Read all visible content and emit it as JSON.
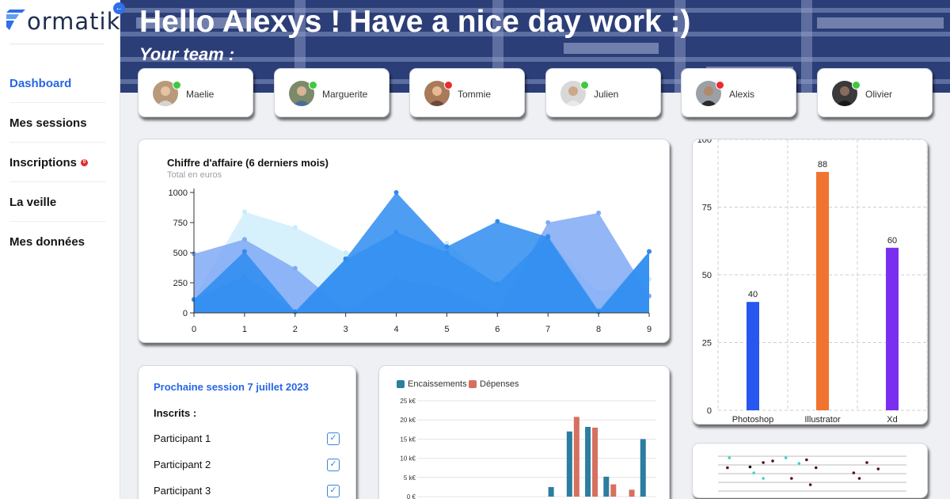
{
  "app": {
    "logo_text": "ormatik",
    "collapse_icon": "arrow-left-icon"
  },
  "nav": {
    "items": [
      {
        "label": "Dashboard",
        "active": true
      },
      {
        "label": "Mes sessions"
      },
      {
        "label": "Inscriptions",
        "badge": "0"
      },
      {
        "label": "La veille"
      },
      {
        "label": "Mes données"
      }
    ]
  },
  "hero": {
    "title": "Hello Alexys ! Have a nice day work :)",
    "subtitle": "Your team :"
  },
  "team": [
    {
      "name": "Maelie",
      "online": true
    },
    {
      "name": "Marguerite",
      "online": false
    },
    {
      "name": "Tommie",
      "online": false
    },
    {
      "name": "Julien",
      "online": true
    },
    {
      "name": "Alexis",
      "online": false
    },
    {
      "name": "Olivier",
      "online": true
    }
  ],
  "colors": {
    "accent": "#2766e6",
    "online": "#3ec93e",
    "offline": "#ea2c2c"
  },
  "revenue_chart": {
    "title": "Chiffre d'affaire (6 derniers mois)",
    "subtitle": "Total en euros"
  },
  "skills_chart": {},
  "session": {
    "title": "Prochaine session 7 juillet 2023",
    "inscrits_label": "Inscrits :",
    "participants": [
      "Participant 1",
      "Participant 2",
      "Participant 3"
    ]
  },
  "cash_chart": {},
  "chart_data": [
    {
      "type": "area",
      "title": "Chiffre d'affaire (6 derniers mois)",
      "subtitle": "Total en euros",
      "x": [
        0,
        1,
        2,
        3,
        4,
        5,
        6,
        7,
        8,
        9
      ],
      "ylim": [
        0,
        1000
      ],
      "yticks": [
        0,
        250,
        500,
        750,
        1000
      ],
      "grid": false,
      "series": [
        {
          "color": "#c9ecfb",
          "values": [
            120,
            840,
            710,
            500,
            550,
            580,
            210,
            610,
            170,
            280
          ]
        },
        {
          "color": "#7fa9f4",
          "values": [
            490,
            610,
            370,
            20,
            280,
            200,
            10,
            750,
            830,
            140
          ]
        },
        {
          "color": "#5aa7f2",
          "values": [
            110,
            310,
            10,
            440,
            670,
            500,
            240,
            640,
            20,
            510
          ]
        },
        {
          "color": "#2e8cf0",
          "values": [
            110,
            510,
            10,
            450,
            1000,
            550,
            760,
            630,
            10,
            510
          ]
        }
      ]
    },
    {
      "type": "bar",
      "categories": [
        "Photoshop",
        "Illustrator",
        "Xd"
      ],
      "values": [
        40,
        88,
        60
      ],
      "colors": [
        "#2756f0",
        "#f0742f",
        "#7a2ff0"
      ],
      "ylim": [
        0,
        100
      ],
      "yticks": [
        0,
        25,
        50,
        75,
        100
      ],
      "grid": true
    },
    {
      "type": "bar",
      "legend": "top-left",
      "ylim": [
        0,
        25000
      ],
      "yticks": [
        "0 €",
        "5 k€",
        "10 k€",
        "15 k€",
        "20 k€",
        "25 k€"
      ],
      "series": [
        {
          "name": "Encaissements",
          "color": "#2c7da0",
          "values": [
            0,
            0,
            0,
            0,
            0,
            0,
            0,
            2500,
            17000,
            18200,
            5200,
            0,
            15000
          ]
        },
        {
          "name": "Dépenses",
          "color": "#d6705f",
          "values": [
            0,
            0,
            0,
            0,
            0,
            0,
            0,
            0,
            20800,
            18000,
            3200,
            1800,
            0
          ]
        }
      ]
    },
    {
      "type": "scatter",
      "points": [
        {
          "x": 0.06,
          "y": 0.8,
          "color": "#37d6c4"
        },
        {
          "x": 0.05,
          "y": 0.55,
          "color": "#5a0d22"
        },
        {
          "x": 0.17,
          "y": 0.57,
          "color": "#111"
        },
        {
          "x": 0.19,
          "y": 0.42,
          "color": "#37d6c4"
        },
        {
          "x": 0.24,
          "y": 0.68,
          "color": "#5a0d22"
        },
        {
          "x": 0.29,
          "y": 0.72,
          "color": "#5a0d22"
        },
        {
          "x": 0.24,
          "y": 0.28,
          "color": "#37d6c4"
        },
        {
          "x": 0.36,
          "y": 0.8,
          "color": "#37d6c4"
        },
        {
          "x": 0.39,
          "y": 0.28,
          "color": "#5a0d22"
        },
        {
          "x": 0.43,
          "y": 0.66,
          "color": "#37d6c4"
        },
        {
          "x": 0.47,
          "y": 0.75,
          "color": "#5a0d22"
        },
        {
          "x": 0.52,
          "y": 0.55,
          "color": "#5a0d22"
        },
        {
          "x": 0.49,
          "y": 0.12,
          "color": "#5a0d22"
        },
        {
          "x": 0.72,
          "y": 0.42,
          "color": "#5a0d22"
        },
        {
          "x": 0.75,
          "y": 0.28,
          "color": "#5a0d22"
        },
        {
          "x": 0.79,
          "y": 0.68,
          "color": "#5a0d22"
        },
        {
          "x": 0.85,
          "y": 0.52,
          "color": "#5a0d22"
        }
      ]
    }
  ]
}
